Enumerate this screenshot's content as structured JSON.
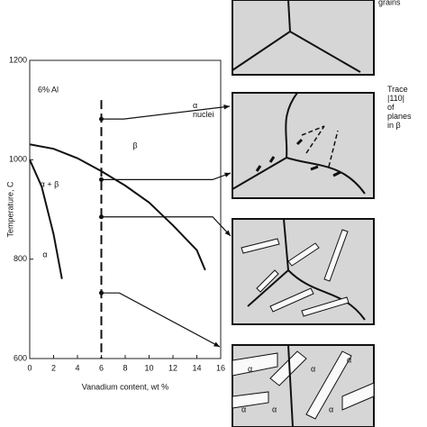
{
  "chart_data": {
    "type": "line",
    "xlabel": "Vanadium content, wt %",
    "ylabel": "Temperature, C",
    "xlim": [
      0,
      16
    ],
    "xticks": [
      0,
      2,
      4,
      6,
      8,
      10,
      12,
      14,
      16
    ],
    "ylim": [
      600,
      1200
    ],
    "yticks": [
      600,
      800,
      1000,
      1200
    ],
    "series": [
      {
        "color": "#111111",
        "x": [
          0,
          2,
          4,
          6,
          8,
          10,
          12,
          14,
          14.7
        ],
        "values": [
          1031,
          1022,
          1003,
          977,
          948,
          914,
          868,
          818,
          778
        ]
      },
      {
        "color": "#111111",
        "x": [
          0,
          1,
          2,
          2.7
        ],
        "values": [
          1000,
          946,
          850,
          760
        ]
      }
    ],
    "alloy_points": {
      "color": "#111111",
      "x": [
        6,
        6,
        6,
        6
      ],
      "values": [
        1082,
        960,
        885,
        732
      ]
    },
    "alloy_line": {
      "x": 6,
      "values": [
        1120,
        600
      ]
    },
    "region_labels": [
      "6% Al",
      "β",
      "α + β",
      "α"
    ],
    "panel_labels": [
      "grains",
      "α\nnuclei",
      "Trace\n|110|\nof\nplanes\nin β",
      "α",
      "α",
      "α",
      "α",
      "α",
      "α"
    ]
  }
}
